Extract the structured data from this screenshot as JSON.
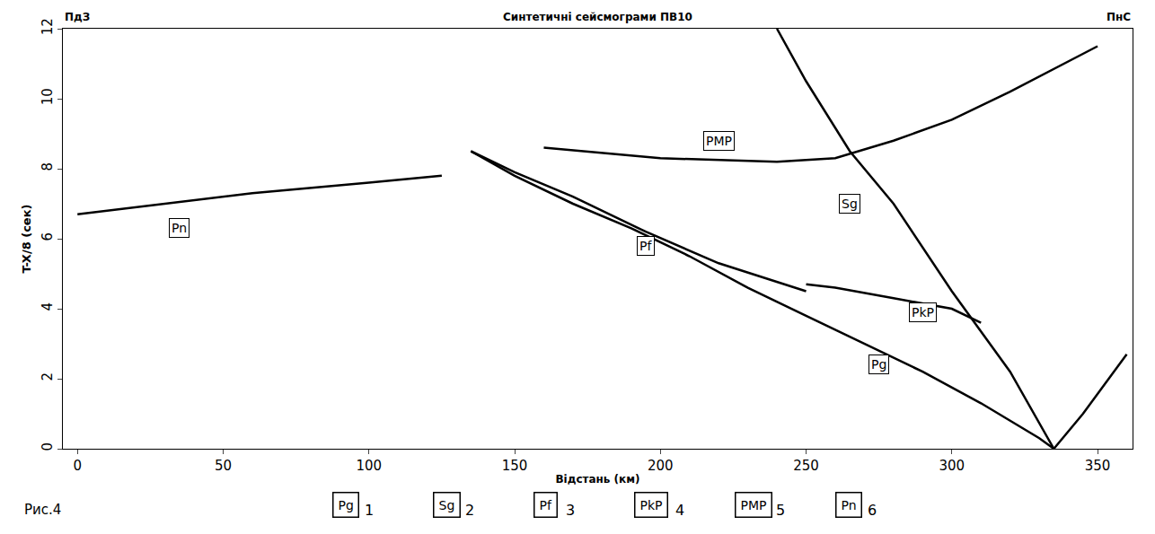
{
  "chart_data": {
    "type": "line",
    "title": "Синтетичні сейсмограми ПВ10",
    "side_labels": [
      "ПдЗ",
      "ПнС"
    ],
    "figure_label": "Рис.4",
    "x_label": "Відстань (км)",
    "y_label": "T-X/8 (сек)",
    "xlim": [
      -5,
      362
    ],
    "ylim": [
      0,
      12
    ],
    "xticks": [
      0,
      50,
      100,
      150,
      200,
      250,
      300,
      350
    ],
    "yticks": [
      0,
      2,
      4,
      6,
      8,
      10,
      12
    ],
    "grid": false,
    "series": [
      {
        "name": "Pg",
        "color": "#000000",
        "x": [
          135,
          150,
          170,
          190,
          210,
          230,
          250,
          270,
          290,
          310,
          330,
          335,
          345,
          360
        ],
        "values": [
          8.5,
          7.8,
          7.0,
          6.3,
          5.5,
          4.6,
          3.8,
          3.0,
          2.2,
          1.3,
          0.3,
          0.0,
          1.0,
          2.7
        ]
      },
      {
        "name": "Sg",
        "color": "#000000",
        "x": [
          240,
          250,
          265,
          280,
          300,
          320,
          335
        ],
        "values": [
          12.0,
          10.5,
          8.5,
          7.0,
          4.5,
          2.2,
          0.0
        ]
      },
      {
        "name": "Pf",
        "color": "#000000",
        "x": [
          135,
          150,
          170,
          195,
          220,
          250
        ],
        "values": [
          8.5,
          7.9,
          7.2,
          6.2,
          5.3,
          4.5
        ]
      },
      {
        "name": "PkP",
        "color": "#000000",
        "x": [
          250,
          260,
          280,
          300,
          310
        ],
        "values": [
          4.7,
          4.6,
          4.3,
          4.0,
          3.6
        ]
      },
      {
        "name": "PMP",
        "color": "#000000",
        "x": [
          160,
          200,
          240,
          260,
          280,
          300,
          320,
          350
        ],
        "values": [
          8.6,
          8.3,
          8.2,
          8.3,
          8.8,
          9.4,
          10.2,
          11.5
        ]
      },
      {
        "name": "Pn",
        "color": "#000000",
        "x": [
          0,
          30,
          60,
          100,
          125
        ],
        "values": [
          6.7,
          7.0,
          7.3,
          7.6,
          7.8
        ]
      }
    ],
    "annotations": [
      {
        "text": "Pn",
        "x": 35,
        "y": 6.3
      },
      {
        "text": "Pf",
        "x": 195,
        "y": 5.8
      },
      {
        "text": "PMP",
        "x": 220,
        "y": 8.8
      },
      {
        "text": "Sg",
        "x": 265,
        "y": 7.0
      },
      {
        "text": "PkP",
        "x": 290,
        "y": 3.9
      },
      {
        "text": "Pg",
        "x": 275,
        "y": 2.4
      }
    ],
    "legend_key": [
      {
        "label": "Pg",
        "number": 1
      },
      {
        "label": "Sg",
        "number": 2
      },
      {
        "label": "Pf",
        "number": 3
      },
      {
        "label": "PkP",
        "number": 4
      },
      {
        "label": "PMP",
        "number": 5
      },
      {
        "label": "Pn",
        "number": 6
      }
    ]
  }
}
